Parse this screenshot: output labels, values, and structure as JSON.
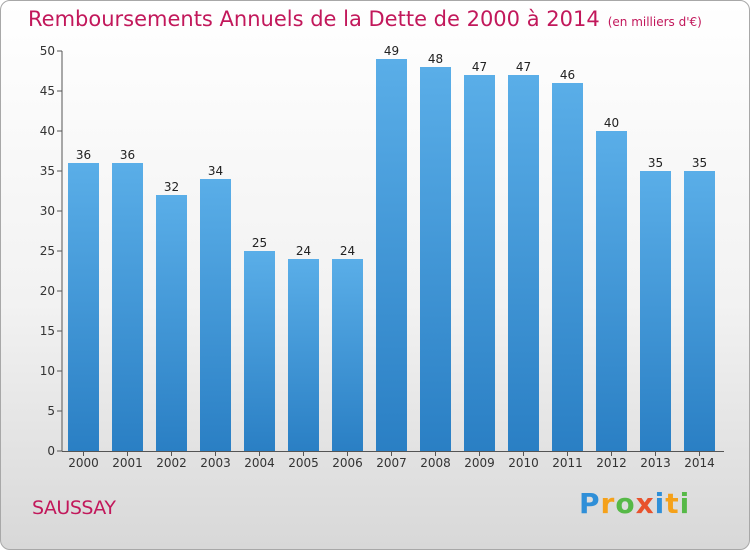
{
  "chart_data": {
    "type": "bar",
    "title": "Remboursements Annuels de la Dette de 2000 à 2014",
    "unit": "(en milliers d'€)",
    "categories": [
      "2000",
      "2001",
      "2002",
      "2003",
      "2004",
      "2005",
      "2006",
      "2007",
      "2008",
      "2009",
      "2010",
      "2011",
      "2012",
      "2013",
      "2014"
    ],
    "values": [
      36,
      36,
      32,
      34,
      25,
      24,
      24,
      49,
      48,
      47,
      47,
      46,
      40,
      35,
      35
    ],
    "ylim": [
      0,
      50
    ],
    "yticks": [
      0,
      5,
      10,
      15,
      20,
      25,
      30,
      35,
      40,
      45,
      50
    ],
    "grid": false,
    "bar_color_top": "#5aaee8",
    "bar_color_bottom": "#2a7fc4"
  },
  "commune": "SAUSSAY",
  "logo": {
    "text": "Proxiti",
    "letters": [
      "P",
      "r",
      "o",
      "x",
      "i",
      "t",
      "i"
    ]
  }
}
